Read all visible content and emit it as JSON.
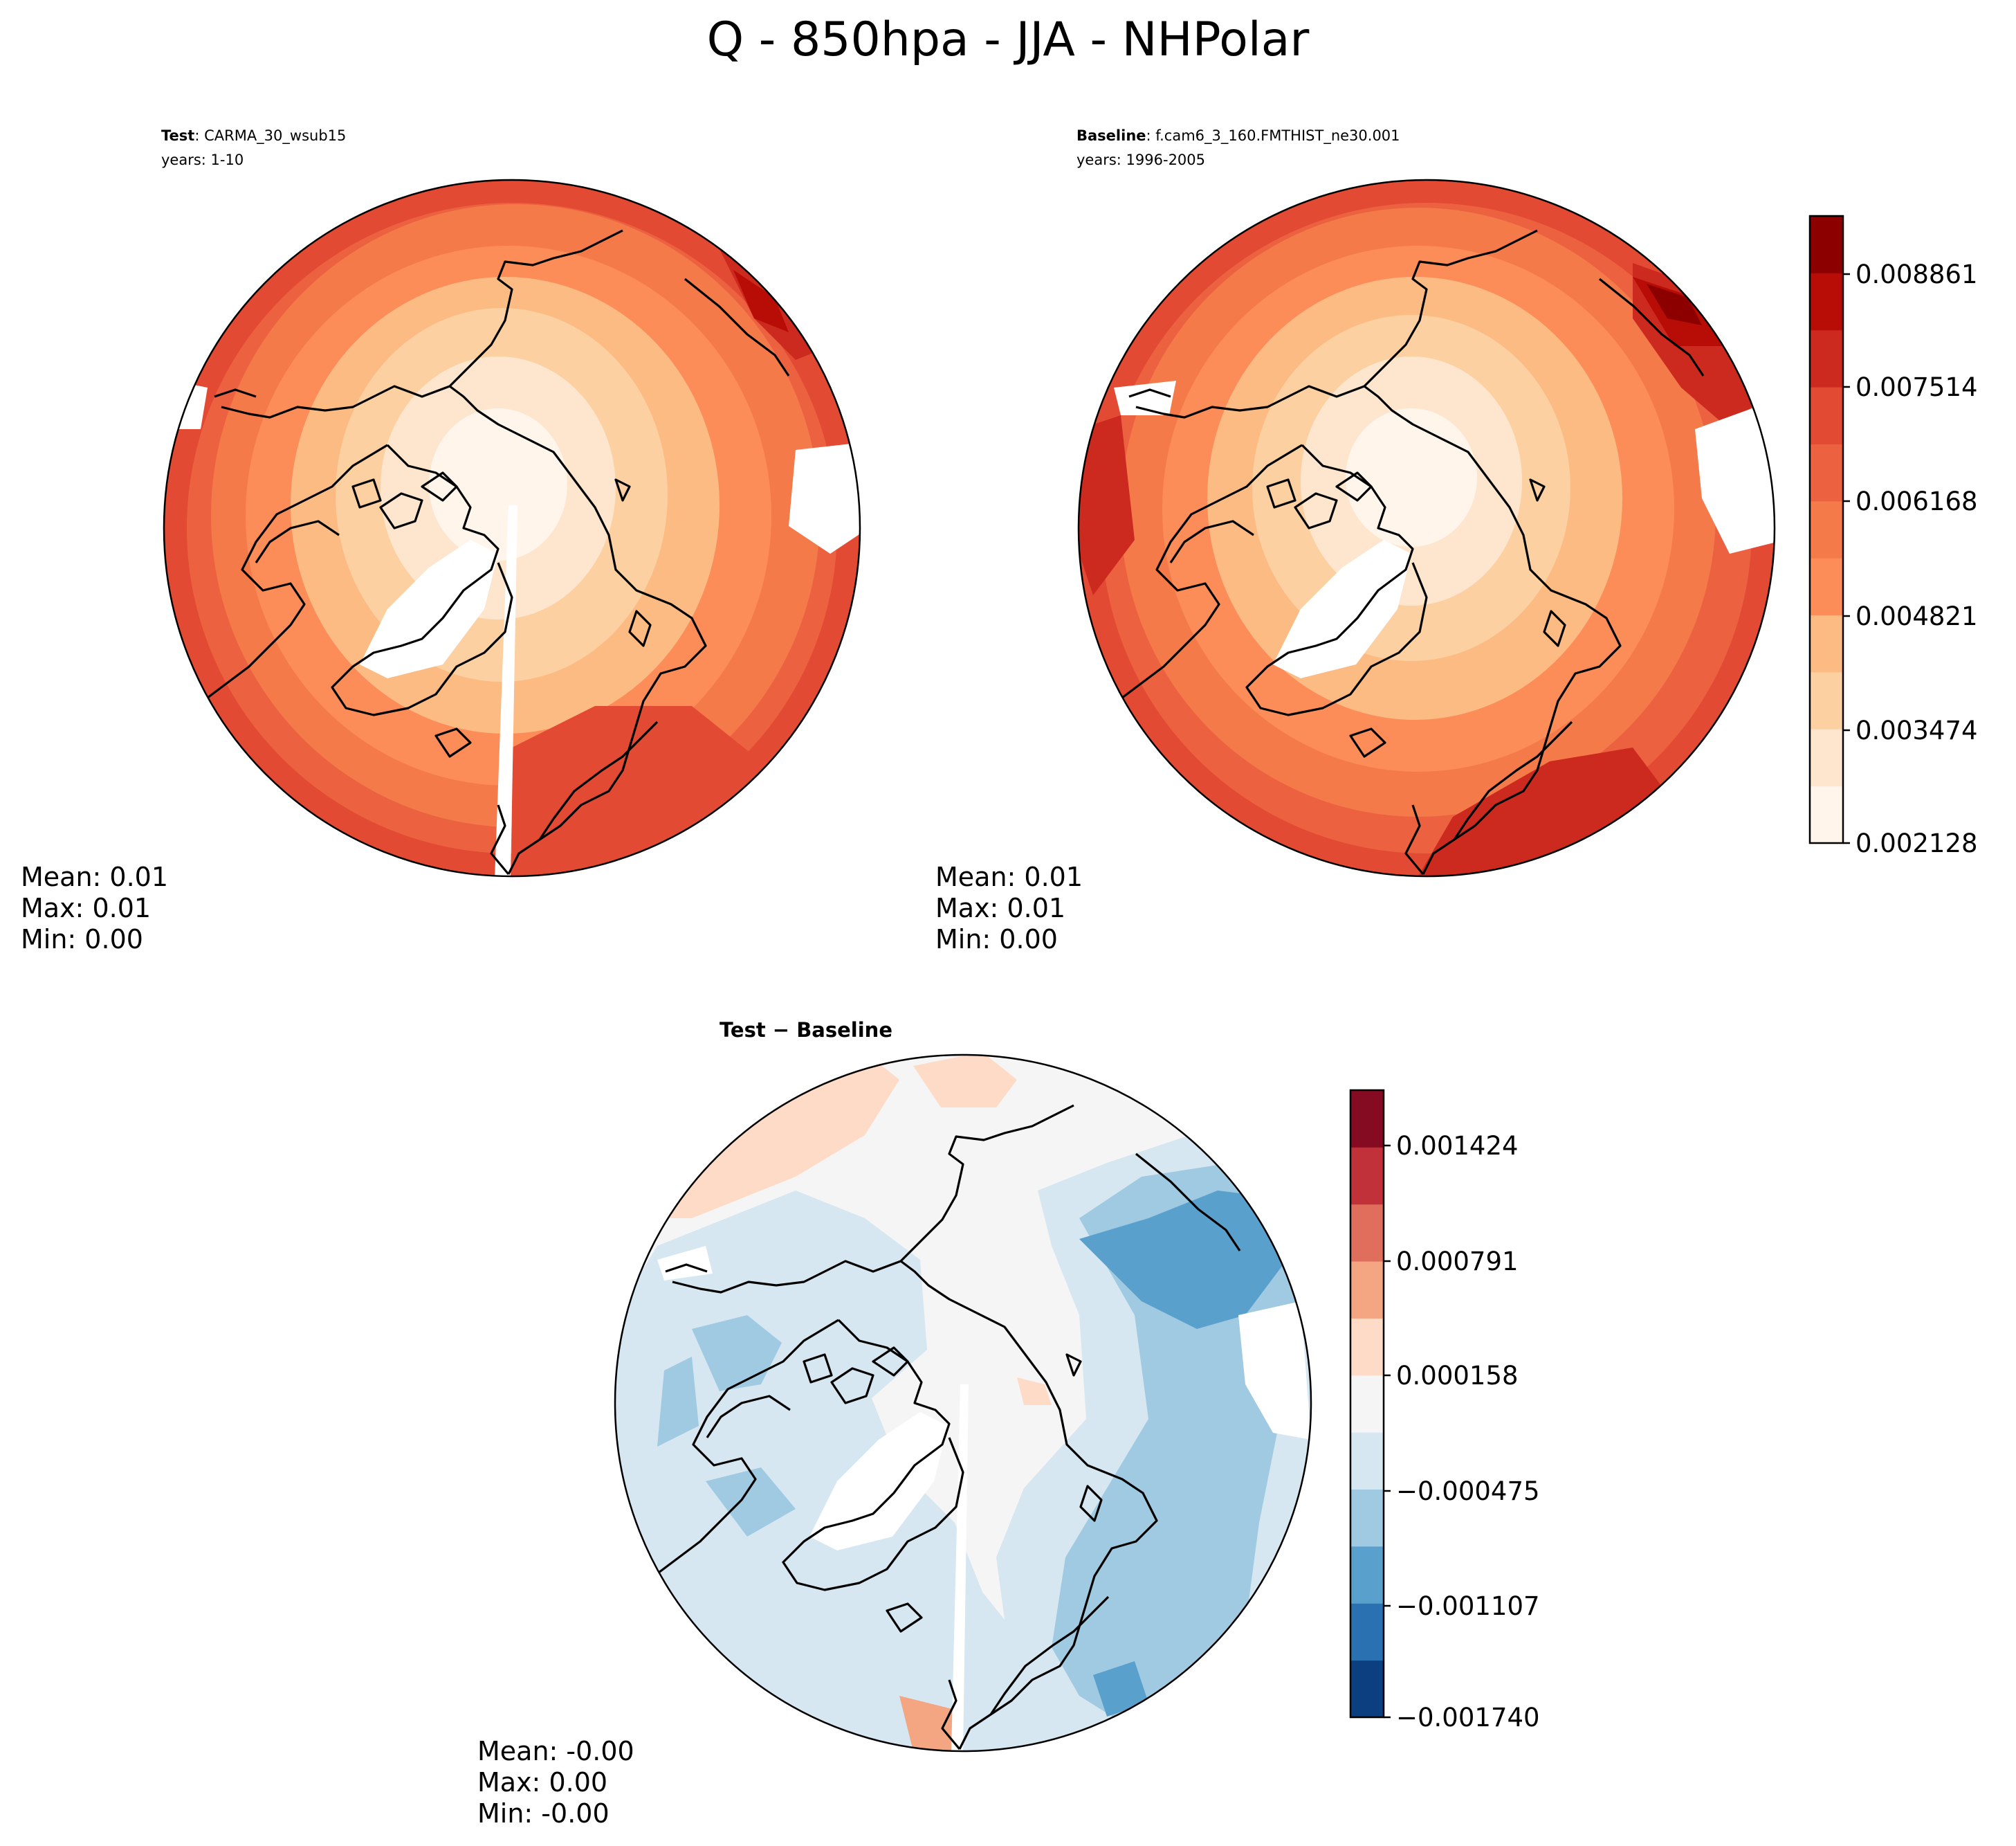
{
  "title": "Q - 850hpa - JJA - NHPolar",
  "panels": {
    "test": {
      "label_bold": "Test",
      "label_rest": ": CARMA_30_wsub15",
      "years": "years: 1-10",
      "stats": [
        "Mean:  0.01",
        "Max:  0.01",
        "Min:  0.00"
      ]
    },
    "baseline": {
      "label_bold": "Baseline",
      "label_rest": ": f.cam6_3_160.FMTHIST_ne30.001",
      "years": "years: 1996-2005",
      "stats": [
        "Mean:  0.01",
        "Max:  0.01",
        "Min:  0.00"
      ]
    },
    "diff": {
      "label_bold": "Test − Baseline",
      "stats": [
        "Mean: -0.00",
        "Max:  0.00",
        "Min: -0.00"
      ]
    }
  },
  "colorbars": {
    "main": {
      "ticks": [
        "0.008861",
        "0.007514",
        "0.006168",
        "0.004821",
        "0.003474",
        "0.002128"
      ],
      "colors": [
        "#fff5eb",
        "#fee6ce",
        "#fdd0a2",
        "#fdbb84",
        "#fc8d59",
        "#f47a4a",
        "#ec6240",
        "#e34a33",
        "#cc2a1e",
        "#b80c06",
        "#8c0000"
      ]
    },
    "diff": {
      "ticks": [
        "0.001424",
        "0.000791",
        "0.000158",
        "−0.000475",
        "−0.001107",
        "−0.001740"
      ],
      "colors": [
        "#0b3f80",
        "#2a71b2",
        "#5aa0cc",
        "#9fcae1",
        "#d6e7f2",
        "#f5f5f5",
        "#fddbc7",
        "#f4a582",
        "#df6f5c",
        "#c0313a",
        "#850b22"
      ]
    }
  }
}
